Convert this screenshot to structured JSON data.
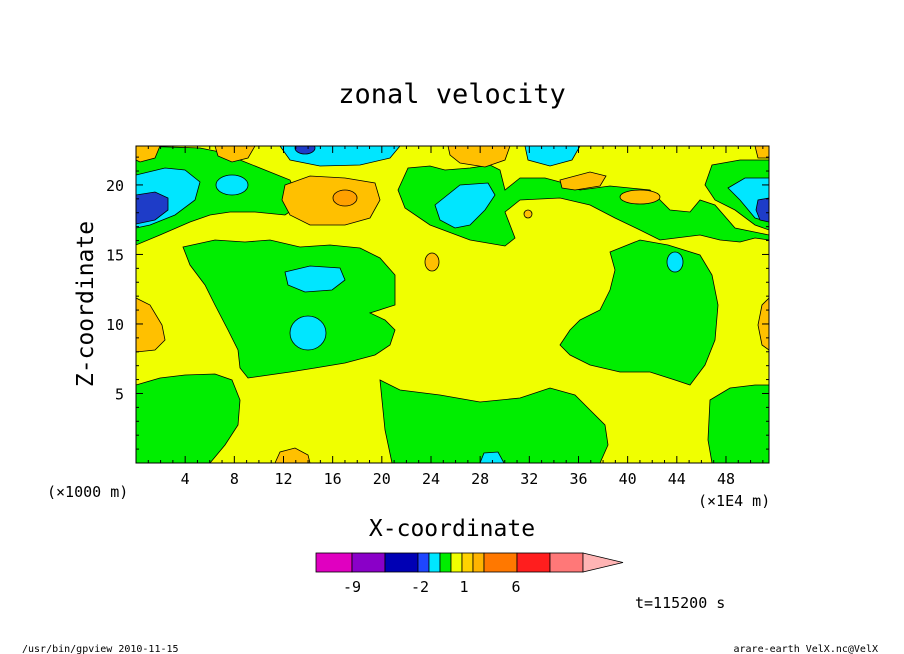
{
  "chart_data": {
    "type": "heatmap",
    "title": "zonal velocity",
    "xlabel": "X-coordinate",
    "ylabel": "Z-coordinate",
    "x_unit_left": "(×1000 m)",
    "x_unit_right": "(×1E4 m)",
    "x_ticks": [
      "4",
      "8",
      "12",
      "16",
      "20",
      "24",
      "28",
      "32",
      "36",
      "40",
      "44",
      "48"
    ],
    "y_ticks": [
      "5",
      "10",
      "15",
      "20"
    ],
    "xlim": [
      0,
      51.5
    ],
    "ylim": [
      0,
      22.8
    ],
    "colorbar": {
      "labels": [
        "-9",
        "-2",
        "1",
        "6"
      ],
      "colors": [
        "#e000c0",
        "#8a00c8",
        "#0000b4",
        "#1e46ff",
        "#00e6ff",
        "#00ee00",
        "#f0ff00",
        "#ffd200",
        "#ffb400",
        "#ff7800",
        "#ff1e1e",
        "#ff7878",
        "#ffb4b4"
      ]
    },
    "levels": {
      "dark_blue": "#1e3cc8",
      "cyan": "#00e6ff",
      "green": "#00ee00",
      "yellow": "#f0ff00",
      "orange": "#ffc000",
      "dark_orange": "#ffa000",
      "pink": "#ff8c8c"
    },
    "time_label": "t=115200 s"
  },
  "footer": {
    "left": "/usr/bin/gpview   2010-11-15",
    "right": "arare-earth_VelX.nc@VelX"
  }
}
